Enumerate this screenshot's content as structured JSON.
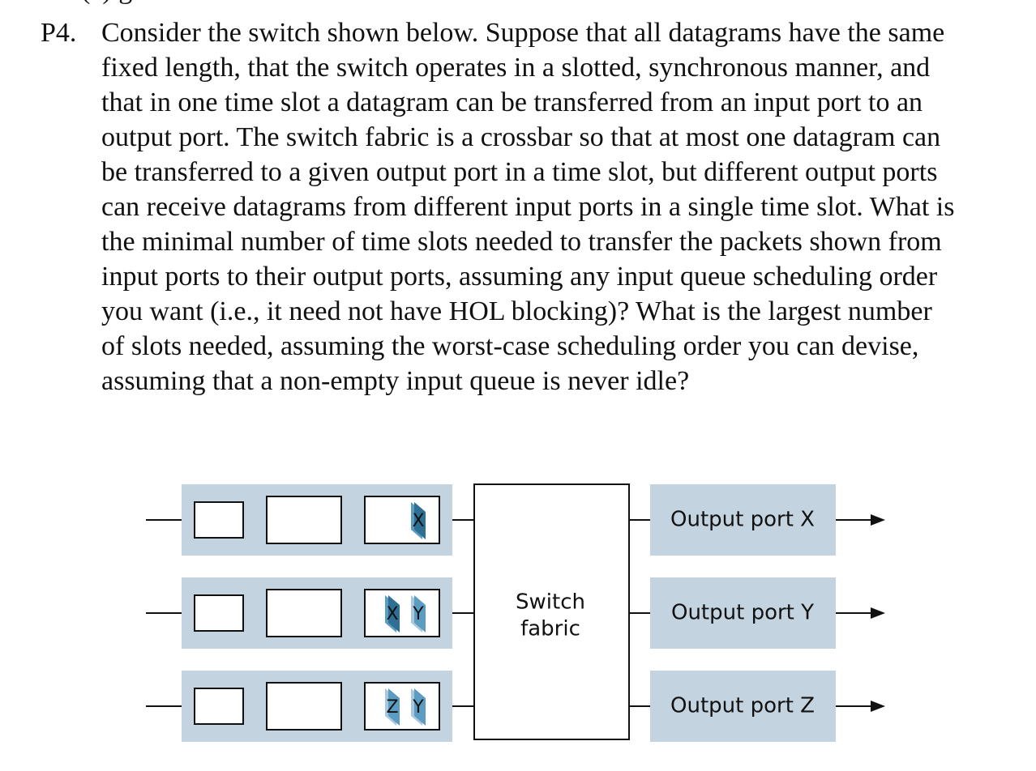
{
  "problem": {
    "number": "P4.",
    "top_fragment": "(c)            g",
    "lines": [
      "Consider the switch shown below. Suppose that all datagrams have the same",
      "fixed length, that the switch operates in a slotted, synchronous manner, and",
      "that in one time slot a datagram can be transferred from an input port to an",
      "output port. The switch fabric is a crossbar so that at most one datagram can",
      "be transferred to a given output port in a time slot, but different output ports",
      "can receive datagrams from different input ports in a single time slot. What is",
      "the minimal number of time slots needed to transfer the packets shown from",
      "input ports to their output ports, assuming any input queue scheduling order",
      "you want (i.e., it need not have HOL blocking)? What is the largest number",
      "of slots needed, assuming the worst-case scheduling order you can devise,",
      "assuming that a non-empty input queue is never idle?"
    ]
  },
  "figure": {
    "fabric_label_line1": "Switch",
    "fabric_label_line2": "fabric",
    "input_queues": [
      {
        "packets": [
          "X"
        ]
      },
      {
        "packets": [
          "X",
          "Y"
        ]
      },
      {
        "packets": [
          "Z",
          "Y"
        ]
      }
    ],
    "output_ports": [
      {
        "label": "Output port X"
      },
      {
        "label": "Output port Y"
      },
      {
        "label": "Output port Z"
      }
    ],
    "colors": {
      "port_background": "#c3d3df",
      "packet_dark": "#2f6f93",
      "packet_mid": "#5b9cc3",
      "packet_light": "#a9c8dd",
      "line": "#111111",
      "box_fill": "#ffffff"
    }
  }
}
